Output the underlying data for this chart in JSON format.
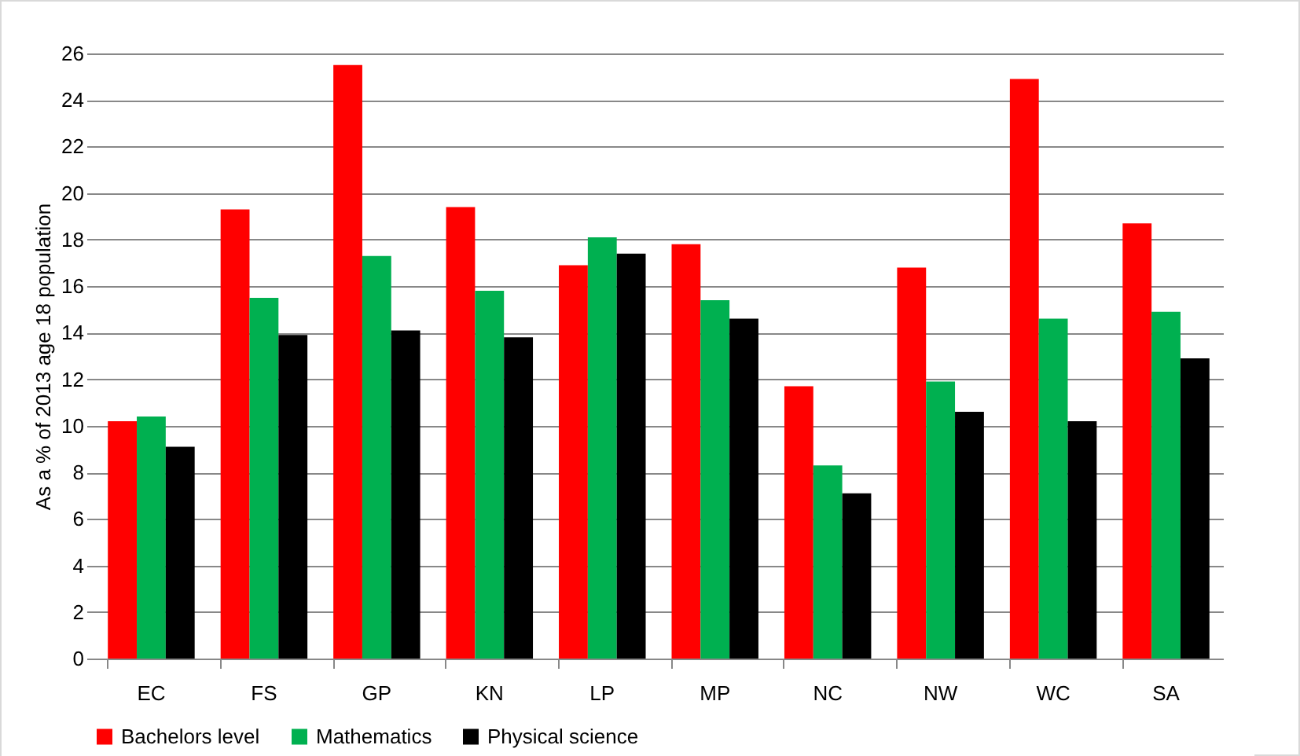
{
  "chart_data": {
    "type": "bar",
    "ylabel": "As a % of 2013 age 18 population",
    "categories": [
      "EC",
      "FS",
      "GP",
      "KN",
      "LP",
      "MP",
      "NC",
      "NW",
      "WC",
      "SA"
    ],
    "series": [
      {
        "name": "Bachelors level",
        "color": "#ff0000",
        "values": [
          10.2,
          19.3,
          25.5,
          19.4,
          16.9,
          17.8,
          11.7,
          16.8,
          24.9,
          18.7
        ]
      },
      {
        "name": "Mathematics",
        "color": "#00b050",
        "values": [
          10.4,
          15.5,
          17.3,
          15.8,
          18.1,
          15.4,
          8.3,
          11.9,
          14.6,
          14.9
        ]
      },
      {
        "name": "Physical science",
        "color": "#000000",
        "values": [
          9.1,
          13.9,
          14.1,
          13.8,
          17.4,
          14.6,
          7.1,
          10.6,
          10.2,
          12.9
        ]
      }
    ],
    "ylim": [
      0,
      26
    ],
    "yticks": [
      0,
      2,
      4,
      6,
      8,
      10,
      12,
      14,
      16,
      18,
      20,
      22,
      24,
      26
    ],
    "grid": "y",
    "legend": "bottom"
  }
}
